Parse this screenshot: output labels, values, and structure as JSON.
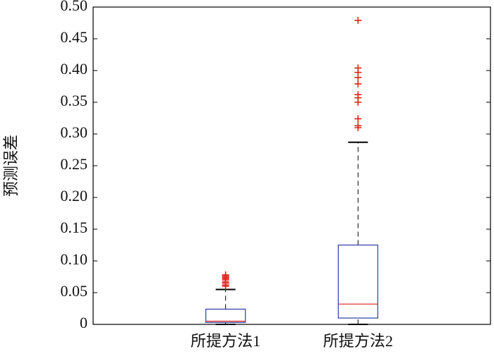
{
  "chart_data": {
    "type": "box",
    "ylabel": "预测误差",
    "categories": [
      "所提方法1",
      "所提方法2"
    ],
    "boxes": [
      {
        "min": 0,
        "q1": 0.003,
        "median": 0.005,
        "q3": 0.024,
        "max": 0.055,
        "outliers": [
          0.06,
          0.062,
          0.065,
          0.067,
          0.07,
          0.072,
          0.074,
          0.076,
          0.078
        ]
      },
      {
        "min": 0,
        "q1": 0.01,
        "median": 0.032,
        "q3": 0.125,
        "max": 0.287,
        "outliers": [
          0.479,
          0.404,
          0.397,
          0.389,
          0.379,
          0.362,
          0.357,
          0.35,
          0.324,
          0.313,
          0.31
        ]
      }
    ],
    "box_color": "#2b3ea6",
    "median_color": "#e0231a",
    "whisker_color": "#000000",
    "outlier_color": "#e0231a",
    "ylim": [
      0,
      0.5
    ],
    "yticks": [
      0,
      0.05,
      {
        "value": 0.1,
        "label": "0.10"
      },
      0.15,
      {
        "value": 0.2,
        "label": "0.20"
      },
      0.25,
      {
        "value": 0.3,
        "label": "0.30"
      },
      0.35,
      {
        "value": 0.4,
        "label": "0.40"
      },
      0.45,
      {
        "value": 0.5,
        "label": "0.50"
      }
    ]
  }
}
